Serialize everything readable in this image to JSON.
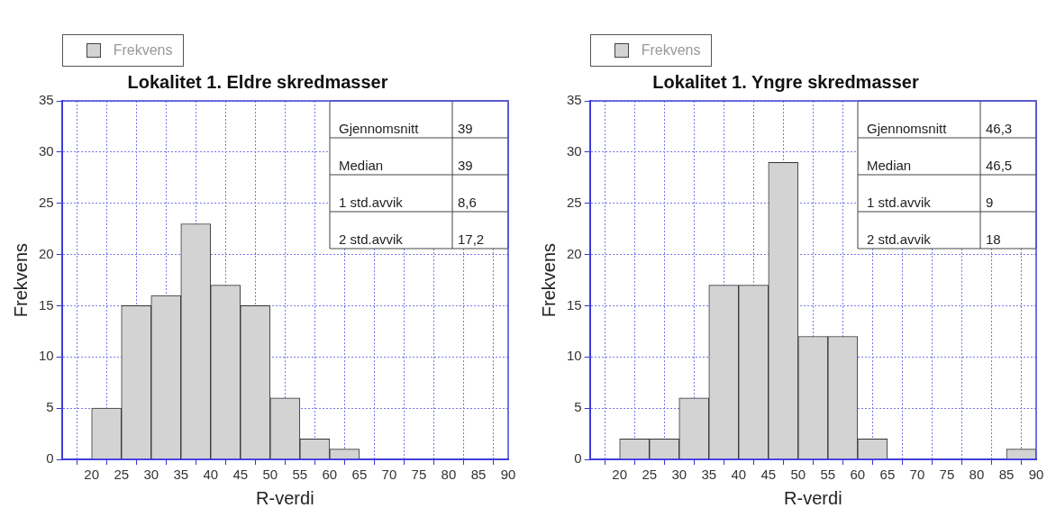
{
  "chart_data": [
    {
      "type": "histogram",
      "title": "Lokalitet 1. Eldre skredmasser",
      "xlabel": "R-verdi",
      "ylabel": "Frekvens",
      "bins": [
        20,
        25,
        30,
        35,
        40,
        45,
        50,
        55,
        60,
        65
      ],
      "series": [
        {
          "name": "Frekvens",
          "color": "#d3d3d3",
          "values": [
            5,
            15,
            16,
            23,
            17,
            15,
            6,
            2,
            1
          ]
        }
      ],
      "xlim": [
        15,
        90
      ],
      "xticks": [
        {
          "value": 15,
          "label": null
        },
        20,
        25,
        30,
        35,
        40,
        45,
        50,
        55,
        60,
        65,
        70,
        75,
        80,
        85,
        90
      ],
      "ylim": [
        0,
        35
      ],
      "yticks": [
        0,
        5,
        10,
        15,
        20,
        25,
        30,
        35
      ],
      "grid": true,
      "legend": "top left",
      "annotations": [
        "Gjennomsnitt",
        "39",
        "Median",
        "39",
        "1 std.avvik",
        "8,6",
        "2 std.avvik",
        "17,2"
      ]
    },
    {
      "type": "histogram",
      "title": "Lokalitet 1. Yngre skredmasser",
      "xlabel": "R-verdi",
      "ylabel": "Frekvens",
      "bins": [
        20,
        25,
        30,
        35,
        40,
        45,
        50,
        55,
        60,
        65,
        70,
        75,
        80,
        85,
        90
      ],
      "series": [
        {
          "name": "Frekvens",
          "color": "#d3d3d3",
          "values": [
            2,
            2,
            6,
            17,
            17,
            29,
            12,
            12,
            2,
            0,
            0,
            0,
            0,
            1
          ]
        }
      ],
      "xlim": [
        15,
        90
      ],
      "xticks": [
        {
          "value": 15,
          "label": null
        },
        20,
        25,
        30,
        35,
        40,
        45,
        50,
        55,
        60,
        65,
        70,
        75,
        80,
        85,
        90
      ],
      "ylim": [
        0,
        35
      ],
      "yticks": [
        0,
        5,
        10,
        15,
        20,
        25,
        30,
        35
      ],
      "grid": true,
      "legend": "top left",
      "annotations": [
        "Gjennomsnitt",
        "46,3",
        "Median",
        "46,5",
        "1 std.avvik",
        "9",
        "2 std.avvik",
        "18"
      ]
    }
  ]
}
